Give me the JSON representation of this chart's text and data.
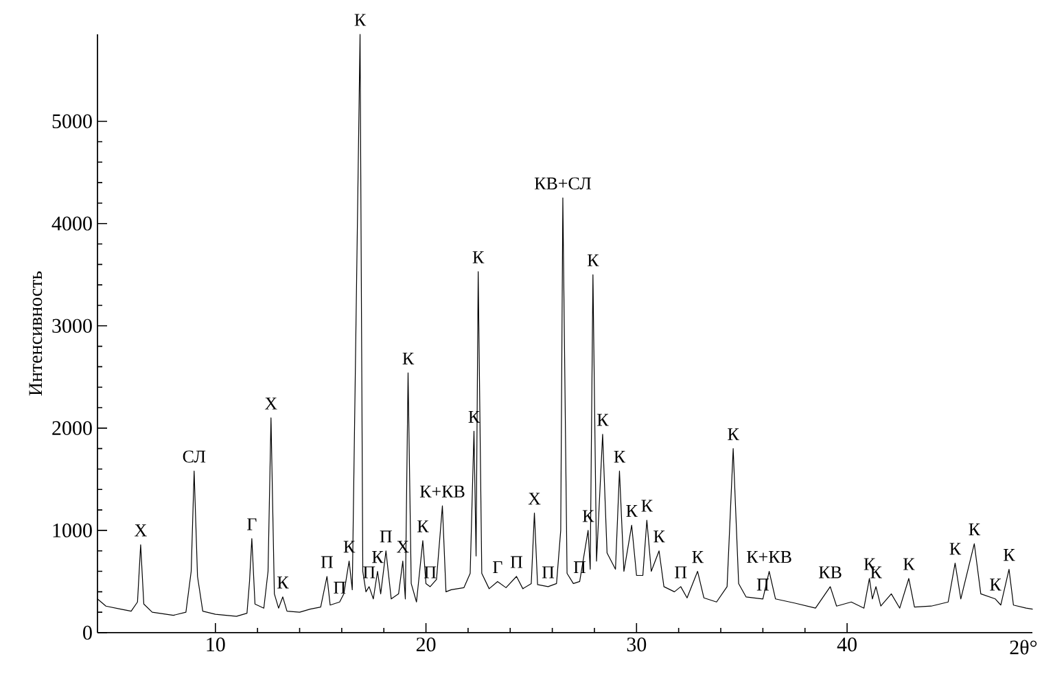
{
  "chart_data": {
    "type": "line",
    "xlabel": "2θ°",
    "ylabel": "Интенсивность",
    "color": "#000000",
    "xlim": [
      4.4,
      48.8
    ],
    "ylim": [
      0,
      5850
    ],
    "xticks": [
      10,
      20,
      30,
      40
    ],
    "yticks": [
      0,
      1000,
      2000,
      3000,
      4000,
      5000
    ],
    "x": [
      4.4,
      4.8,
      5.5,
      6.0,
      6.3,
      6.45,
      6.6,
      7.0,
      8.0,
      8.6,
      8.85,
      8.99,
      9.15,
      9.4,
      10,
      11,
      11.5,
      11.62,
      11.73,
      11.88,
      12.3,
      12.5,
      12.64,
      12.8,
      13.0,
      13.2,
      13.4,
      14,
      14.5,
      15.0,
      15.3,
      15.45,
      15.9,
      16.1,
      16.35,
      16.5,
      16.87,
      17.0,
      17.15,
      17.3,
      17.5,
      17.7,
      17.85,
      18.1,
      18.35,
      18.7,
      18.9,
      19.02,
      19.15,
      19.3,
      19.55,
      19.85,
      20.0,
      20.2,
      20.5,
      20.78,
      20.95,
      21.2,
      21.8,
      22.1,
      22.28,
      22.38,
      22.48,
      22.65,
      23.0,
      23.4,
      23.8,
      24.3,
      24.6,
      25.0,
      25.15,
      25.3,
      25.8,
      26.2,
      26.4,
      26.5,
      26.7,
      27.0,
      27.3,
      27.7,
      27.8,
      27.93,
      28.1,
      28.39,
      28.6,
      29.0,
      29.19,
      29.4,
      29.77,
      30.0,
      30.3,
      30.49,
      30.7,
      31.07,
      31.3,
      31.8,
      32.1,
      32.4,
      32.9,
      33.2,
      33.8,
      34.3,
      34.59,
      34.85,
      35.2,
      36.0,
      36.3,
      36.6,
      37.5,
      38.5,
      39.2,
      39.5,
      40.2,
      40.8,
      41.06,
      41.2,
      41.37,
      41.6,
      42.1,
      42.5,
      42.93,
      43.2,
      44.0,
      44.8,
      45.13,
      45.4,
      46.04,
      46.35,
      47.04,
      47.3,
      47.69,
      47.9,
      48.5,
      48.8
    ],
    "values": [
      330,
      260,
      230,
      210,
      300,
      860,
      280,
      200,
      170,
      200,
      600,
      1580,
      550,
      210,
      180,
      160,
      190,
      500,
      920,
      280,
      240,
      600,
      2100,
      380,
      240,
      350,
      210,
      200,
      230,
      250,
      550,
      270,
      300,
      380,
      700,
      420,
      5850,
      600,
      400,
      450,
      330,
      600,
      380,
      800,
      330,
      380,
      700,
      330,
      2540,
      480,
      300,
      900,
      480,
      450,
      520,
      1240,
      400,
      420,
      440,
      580,
      1970,
      750,
      3530,
      580,
      430,
      500,
      440,
      550,
      430,
      480,
      1170,
      470,
      450,
      480,
      1000,
      4250,
      580,
      480,
      500,
      1000,
      620,
      3500,
      700,
      1940,
      780,
      620,
      1580,
      600,
      1050,
      560,
      560,
      1100,
      600,
      800,
      450,
      400,
      450,
      340,
      600,
      340,
      300,
      450,
      1800,
      480,
      350,
      330,
      600,
      330,
      290,
      240,
      450,
      260,
      300,
      240,
      530,
      330,
      450,
      260,
      380,
      240,
      530,
      250,
      260,
      300,
      680,
      330,
      870,
      380,
      330,
      270,
      620,
      270,
      240,
      230
    ],
    "annotations": [
      {
        "text": "Х",
        "x": 6.45,
        "y": 860
      },
      {
        "text": "СЛ",
        "x": 8.99,
        "y": 1580
      },
      {
        "text": "Г",
        "x": 11.73,
        "y": 920
      },
      {
        "text": "Х",
        "x": 12.64,
        "y": 2100
      },
      {
        "text": "К",
        "x": 13.2,
        "y": 350
      },
      {
        "text": "П",
        "x": 15.3,
        "y": 550
      },
      {
        "text": "П",
        "x": 15.9,
        "y": 300
      },
      {
        "text": "К",
        "x": 16.35,
        "y": 700
      },
      {
        "text": "К",
        "x": 16.87,
        "y": 5850
      },
      {
        "text": "П",
        "x": 17.3,
        "y": 450
      },
      {
        "text": "К",
        "x": 17.7,
        "y": 600
      },
      {
        "text": "П",
        "x": 18.1,
        "y": 800
      },
      {
        "text": "Х",
        "x": 18.9,
        "y": 700
      },
      {
        "text": "К",
        "x": 19.15,
        "y": 2540
      },
      {
        "text": "К",
        "x": 19.85,
        "y": 900
      },
      {
        "text": "П",
        "x": 20.2,
        "y": 450
      },
      {
        "text": "К+КВ",
        "x": 20.78,
        "y": 1240
      },
      {
        "text": "К",
        "x": 22.28,
        "y": 1970
      },
      {
        "text": "К",
        "x": 22.48,
        "y": 3530
      },
      {
        "text": "Г",
        "x": 23.4,
        "y": 500
      },
      {
        "text": "П",
        "x": 24.3,
        "y": 550
      },
      {
        "text": "Х",
        "x": 25.15,
        "y": 1170
      },
      {
        "text": "П",
        "x": 25.8,
        "y": 450
      },
      {
        "text": "КВ+СЛ",
        "x": 26.5,
        "y": 4250
      },
      {
        "text": "П",
        "x": 27.3,
        "y": 500
      },
      {
        "text": "К",
        "x": 27.7,
        "y": 1000
      },
      {
        "text": "К",
        "x": 27.93,
        "y": 3500
      },
      {
        "text": "К",
        "x": 28.39,
        "y": 1940
      },
      {
        "text": "К",
        "x": 29.19,
        "y": 1580
      },
      {
        "text": "К",
        "x": 29.77,
        "y": 1050
      },
      {
        "text": "К",
        "x": 30.49,
        "y": 1100
      },
      {
        "text": "К",
        "x": 31.07,
        "y": 800
      },
      {
        "text": "П",
        "x": 32.1,
        "y": 450
      },
      {
        "text": "К",
        "x": 32.9,
        "y": 600
      },
      {
        "text": "К",
        "x": 34.59,
        "y": 1800
      },
      {
        "text": "П",
        "x": 36.0,
        "y": 330
      },
      {
        "text": "К+КВ",
        "x": 36.3,
        "y": 600
      },
      {
        "text": "КВ",
        "x": 39.2,
        "y": 450
      },
      {
        "text": "К",
        "x": 41.06,
        "y": 530
      },
      {
        "text": "К",
        "x": 41.37,
        "y": 450
      },
      {
        "text": "К",
        "x": 42.93,
        "y": 530
      },
      {
        "text": "К",
        "x": 45.13,
        "y": 680
      },
      {
        "text": "К",
        "x": 46.04,
        "y": 870
      },
      {
        "text": "К",
        "x": 47.04,
        "y": 330
      },
      {
        "text": "К",
        "x": 47.69,
        "y": 620
      }
    ]
  }
}
